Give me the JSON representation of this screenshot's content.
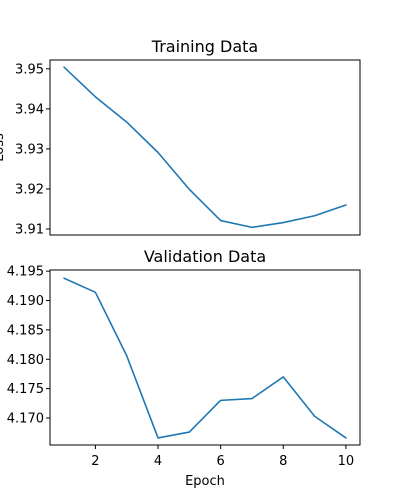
{
  "chart_data": [
    {
      "type": "line",
      "title": "Training Data",
      "xlabel": "",
      "ylabel": "Loss",
      "xlim": [
        0.55,
        10.45
      ],
      "ylim": [
        3.9085,
        3.9522
      ],
      "x": [
        1,
        2,
        3,
        4,
        5,
        6,
        7,
        8,
        9,
        10
      ],
      "yticks": [
        3.91,
        3.92,
        3.93,
        3.94,
        3.95
      ],
      "ytick_labels": [
        "3.91",
        "3.92",
        "3.93",
        "3.94",
        "3.95"
      ],
      "xticks": [],
      "xtick_labels": [],
      "series": [
        {
          "values": [
            3.9504,
            3.943,
            3.9367,
            3.9291,
            3.9199,
            3.9121,
            3.9104,
            3.9116,
            3.9133,
            3.916
          ]
        }
      ],
      "grid": false
    },
    {
      "type": "line",
      "title": "Validation Data",
      "xlabel": "Epoch",
      "ylabel": "",
      "xlim": [
        0.55,
        10.45
      ],
      "ylim": [
        4.1654,
        4.1952
      ],
      "x": [
        1,
        2,
        3,
        4,
        5,
        6,
        7,
        8,
        9,
        10
      ],
      "yticks": [
        4.17,
        4.175,
        4.18,
        4.185,
        4.19,
        4.195
      ],
      "ytick_labels": [
        "4.170",
        "4.175",
        "4.180",
        "4.185",
        "4.190",
        "4.195"
      ],
      "xticks": [
        2,
        4,
        6,
        8,
        10
      ],
      "xtick_labels": [
        "2",
        "4",
        "6",
        "8",
        "10"
      ],
      "series": [
        {
          "values": [
            4.1938,
            4.1914,
            4.1806,
            4.1666,
            4.1676,
            4.173,
            4.1733,
            4.177,
            4.1703,
            4.1666
          ]
        }
      ],
      "grid": false
    }
  ]
}
